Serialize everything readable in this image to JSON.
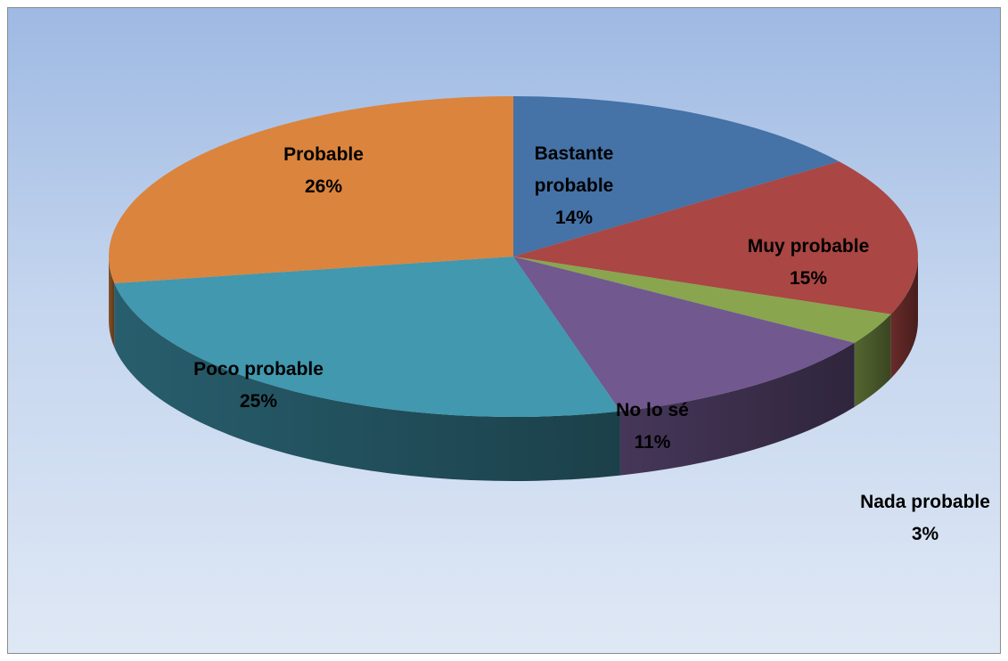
{
  "chart_data": {
    "type": "pie",
    "style": "3d",
    "title": "",
    "slices": [
      {
        "label_lines": [
          "Bastante",
          "probable"
        ],
        "percent_label": "14%",
        "value": 14,
        "color": "#4572a7"
      },
      {
        "label_lines": [
          "Muy probable"
        ],
        "percent_label": "15%",
        "value": 15,
        "color": "#aa4643"
      },
      {
        "label_lines": [
          "Nada probable"
        ],
        "percent_label": "3%",
        "value": 3,
        "color": "#89a54e"
      },
      {
        "label_lines": [
          "No lo sé"
        ],
        "percent_label": "11%",
        "value": 11,
        "color": "#71588f"
      },
      {
        "label_lines": [
          "Poco probable"
        ],
        "percent_label": "25%",
        "value": 25,
        "color": "#4198af"
      },
      {
        "label_lines": [
          "Probable"
        ],
        "percent_label": "26%",
        "value": 26,
        "color": "#db843d"
      }
    ]
  }
}
